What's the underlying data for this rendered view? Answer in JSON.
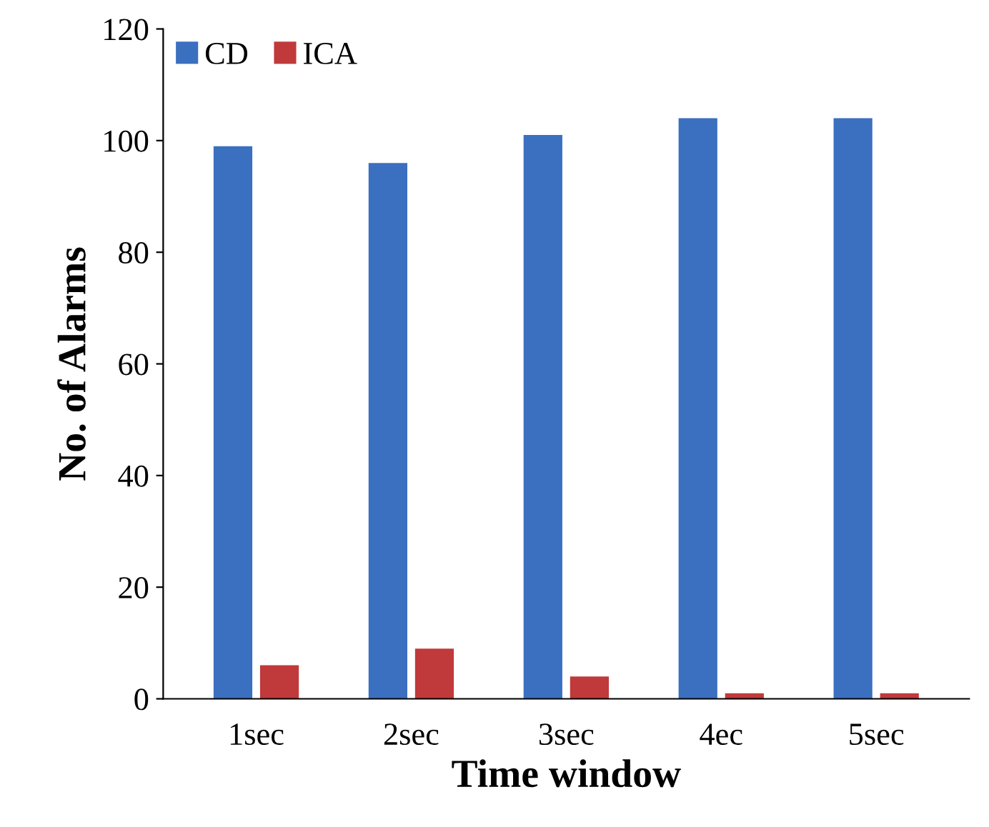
{
  "chart_data": {
    "type": "bar",
    "xlabel": "Time window",
    "ylabel": "No. of Alarms",
    "categories": [
      "1sec",
      "2sec",
      "3sec",
      "4ec",
      "5sec"
    ],
    "series": [
      {
        "name": "CD",
        "color": "#3b6fc0",
        "values": [
          99,
          96,
          101,
          104,
          104
        ]
      },
      {
        "name": "ICA",
        "color": "#c0393b",
        "values": [
          6,
          9,
          4,
          1,
          1
        ]
      }
    ],
    "ylim": [
      0,
      120
    ],
    "yticks": [
      0,
      20,
      40,
      60,
      80,
      100,
      120
    ],
    "grid": false,
    "legend": "top left"
  }
}
